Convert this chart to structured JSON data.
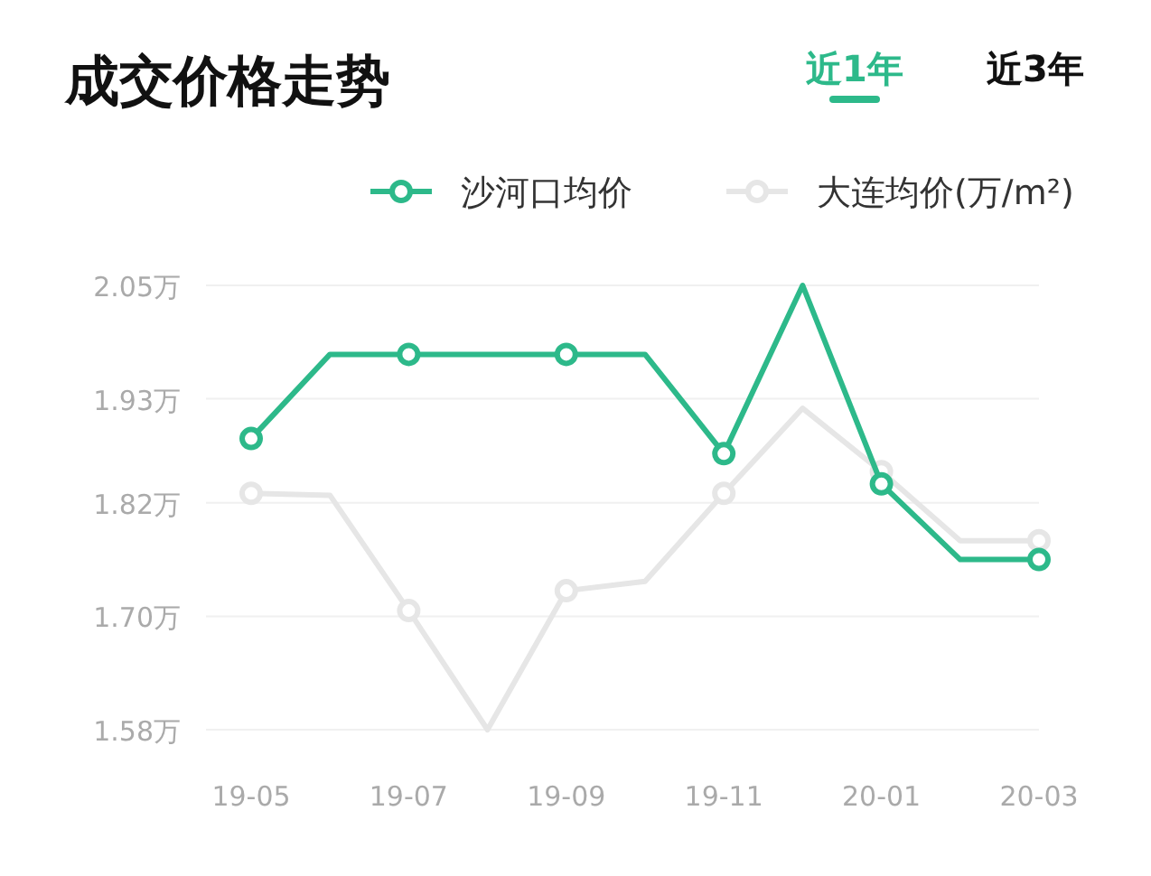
{
  "chart_data": {
    "type": "line",
    "title": "成交价格走势",
    "annotations": [
      "近1年",
      "近3年"
    ],
    "categories": [
      "19-05",
      null,
      "19-07",
      null,
      "19-09",
      null,
      "19-11",
      null,
      "20-01",
      null,
      "20-03"
    ],
    "series": [
      {
        "name": "沙河口均价",
        "color": "#2db98a",
        "values": [
          1.888,
          1.977,
          1.977,
          1.977,
          1.977,
          1.977,
          1.872,
          2.05,
          1.84,
          1.76,
          1.76
        ]
      },
      {
        "name": "大连均价(万/m²)",
        "color": "#e6e6e6",
        "values": [
          1.83,
          1.828,
          1.706,
          1.58,
          1.727,
          1.737,
          1.83,
          1.92,
          1.853,
          1.78,
          1.78
        ]
      }
    ],
    "ylim": [
      1.58,
      2.05
    ],
    "yticks": [
      {
        "value": 1.58,
        "label": "1.58万"
      },
      {
        "value": 1.7,
        "label": "1.70万"
      },
      {
        "value": 1.82,
        "label": "1.82万"
      },
      {
        "value": 1.93,
        "label": "1.93万"
      },
      {
        "value": 2.05,
        "label": "2.05万"
      }
    ],
    "grid": "y",
    "legend": "top right",
    "marker": "circle",
    "line_style": "solid"
  }
}
